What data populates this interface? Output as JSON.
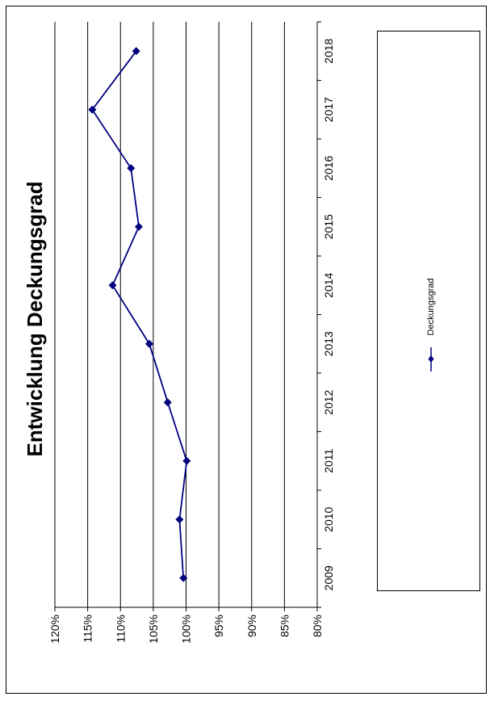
{
  "chart_data": {
    "type": "line",
    "title": "Entwicklung Deckungsgrad",
    "orientation": "rotated-90-ccw",
    "x": [
      "2009",
      "2010",
      "2011",
      "2012",
      "2013",
      "2014",
      "2015",
      "2016",
      "2017",
      "2018"
    ],
    "series": [
      {
        "name": "Deckungsgrad",
        "color": "#000080",
        "marker": "diamond",
        "values": [
          100.4,
          101.0,
          99.9,
          102.8,
          105.6,
          111.2,
          107.2,
          108.4,
          114.3,
          107.6
        ]
      }
    ],
    "y_ticks": [
      "120%",
      "115%",
      "110%",
      "105%",
      "100%",
      "95%",
      "90%",
      "85%",
      "80%"
    ],
    "ylim": [
      80,
      120
    ],
    "grid": true,
    "legend": "right"
  }
}
